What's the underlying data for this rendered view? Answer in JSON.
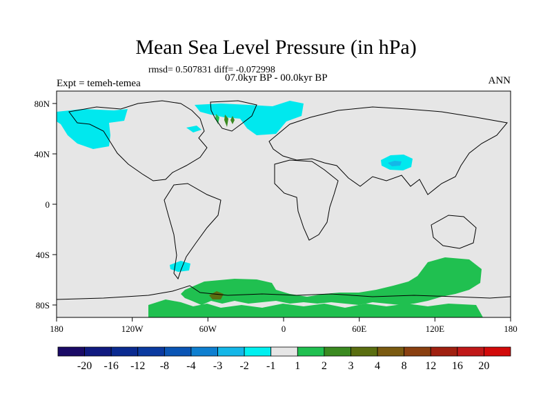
{
  "title": "Mean Sea Level Pressure (in hPa)",
  "stats_line": "rmsd= 0.507831 diff= -0.072998",
  "period_line": "07.0kyr BP - 00.0kyr BP",
  "experiment_line": "Expt = temeh-temea",
  "season": "ANN",
  "x_ticks": [
    "180",
    "120W",
    "60W",
    "0",
    "60E",
    "120E",
    "180"
  ],
  "y_ticks": [
    "80N",
    "40N",
    "0",
    "40S",
    "80S"
  ],
  "colorbar": {
    "labels": [
      "-20",
      "-16",
      "-12",
      "-8",
      "-4",
      "-3",
      "-2",
      "-1",
      "1",
      "2",
      "3",
      "4",
      "8",
      "12",
      "16",
      "20"
    ],
    "colors": [
      "#1a0a66",
      "#101a80",
      "#0a2a90",
      "#0a3aa0",
      "#0a55b5",
      "#0e7fd0",
      "#14b7e8",
      "#00f0f0",
      "#e6e6e6",
      "#20c050",
      "#3a8a20",
      "#5a6e10",
      "#7a5a10",
      "#8a4010",
      "#a02010",
      "#c01818",
      "#d20a0a"
    ]
  }
}
